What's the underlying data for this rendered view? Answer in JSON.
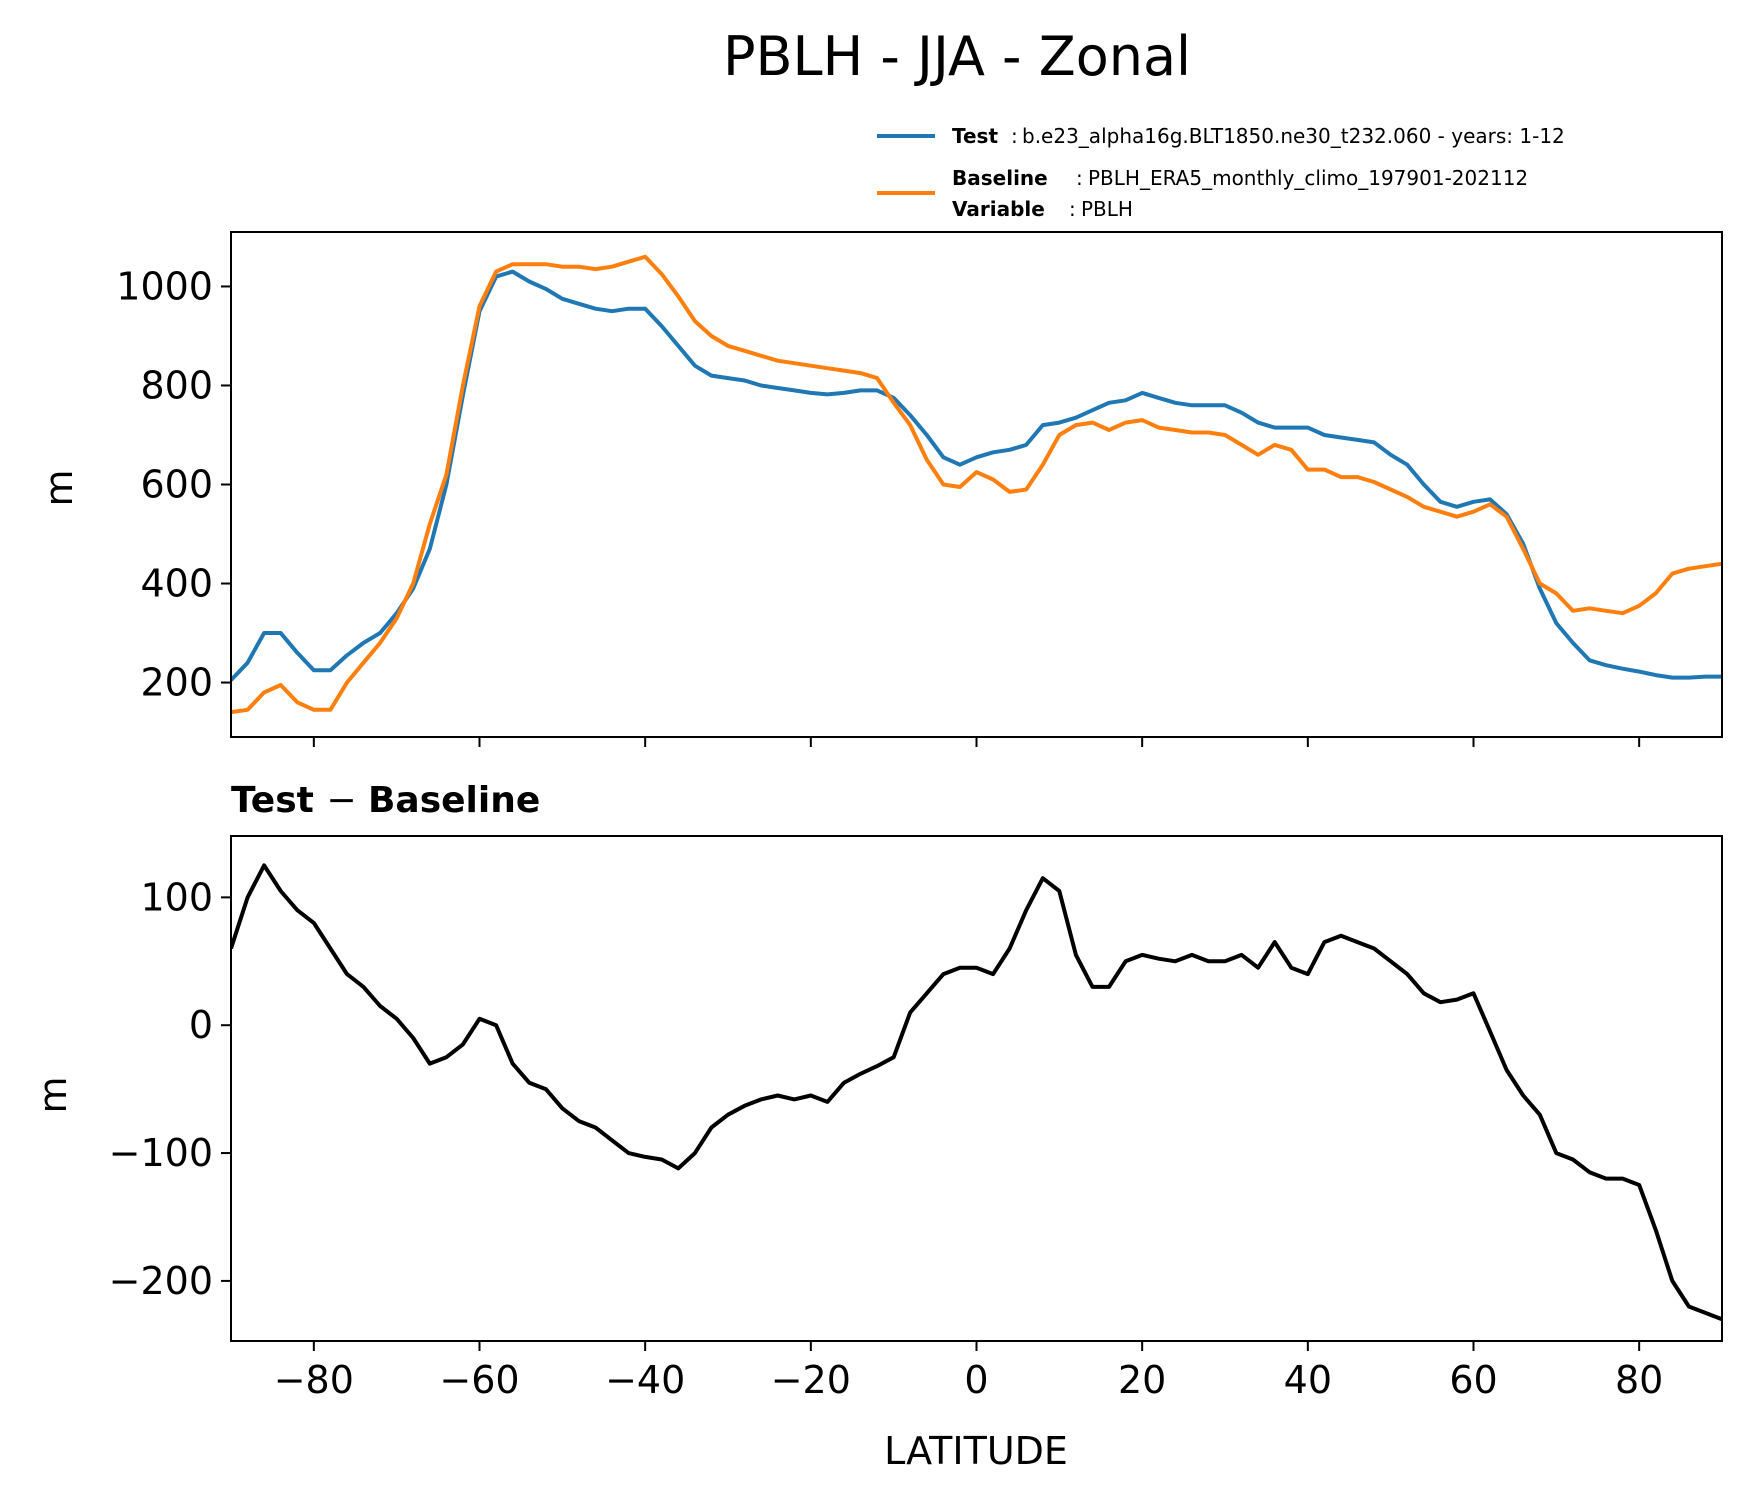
{
  "chart_data": [
    {
      "type": "line",
      "title": "PBLH - JJA - Zonal",
      "ylabel": "m",
      "xlim": [
        -90,
        90
      ],
      "ylim": [
        90,
        1110
      ],
      "xticks": [
        -80,
        -60,
        -40,
        -20,
        0,
        20,
        40,
        60,
        80
      ],
      "yticks": [
        200,
        400,
        600,
        800,
        1000
      ],
      "ytick_labels": [
        "200",
        "400",
        "600",
        "800",
        "1000"
      ],
      "legend": {
        "test_label": "Test",
        "test_text": "b.e23_alpha16g.BLT1850.ne30_t232.060 - years: 1-12",
        "baseline_label": "Baseline",
        "baseline_text": "PBLH_ERA5_monthly_climo_197901-202112",
        "variable_label": "Variable",
        "variable_text": "PBLH",
        "placement": "top-right, above plot"
      },
      "series": [
        {
          "name": "Test",
          "color": "#1f77b4",
          "x": [
            -90,
            -88,
            -86,
            -84,
            -82,
            -80,
            -78,
            -76,
            -74,
            -72,
            -70,
            -68,
            -66,
            -64,
            -62,
            -60,
            -58,
            -56,
            -54,
            -52,
            -50,
            -48,
            -46,
            -44,
            -42,
            -40,
            -38,
            -36,
            -34,
            -32,
            -30,
            -28,
            -26,
            -24,
            -22,
            -20,
            -18,
            -16,
            -14,
            -12,
            -10,
            -8,
            -6,
            -4,
            -2,
            0,
            2,
            4,
            6,
            8,
            10,
            12,
            14,
            16,
            18,
            20,
            22,
            24,
            26,
            28,
            30,
            32,
            34,
            36,
            38,
            40,
            42,
            44,
            46,
            48,
            50,
            52,
            54,
            56,
            58,
            60,
            62,
            64,
            66,
            68,
            70,
            72,
            74,
            76,
            78,
            80,
            82,
            84,
            86,
            88,
            90
          ],
          "values": [
            205,
            240,
            300,
            300,
            260,
            225,
            225,
            255,
            280,
            300,
            340,
            390,
            470,
            600,
            780,
            950,
            1020,
            1030,
            1010,
            995,
            975,
            965,
            955,
            950,
            955,
            955,
            920,
            880,
            840,
            820,
            815,
            810,
            800,
            795,
            790,
            785,
            782,
            785,
            790,
            790,
            775,
            740,
            700,
            655,
            640,
            655,
            665,
            670,
            680,
            720,
            725,
            735,
            750,
            765,
            770,
            785,
            775,
            765,
            760,
            760,
            760,
            745,
            725,
            715,
            715,
            715,
            700,
            695,
            690,
            685,
            660,
            640,
            600,
            565,
            555,
            565,
            570,
            540,
            480,
            390,
            320,
            280,
            245,
            235,
            228,
            222,
            215,
            210,
            210,
            212,
            212
          ]
        },
        {
          "name": "Baseline",
          "color": "#ff7f0e",
          "x": [
            -90,
            -88,
            -86,
            -84,
            -82,
            -80,
            -78,
            -76,
            -74,
            -72,
            -70,
            -68,
            -66,
            -64,
            -62,
            -60,
            -58,
            -56,
            -54,
            -52,
            -50,
            -48,
            -46,
            -44,
            -42,
            -40,
            -38,
            -36,
            -34,
            -32,
            -30,
            -28,
            -26,
            -24,
            -22,
            -20,
            -18,
            -16,
            -14,
            -12,
            -10,
            -8,
            -6,
            -4,
            -2,
            0,
            2,
            4,
            6,
            8,
            10,
            12,
            14,
            16,
            18,
            20,
            22,
            24,
            26,
            28,
            30,
            32,
            34,
            36,
            38,
            40,
            42,
            44,
            46,
            48,
            50,
            52,
            54,
            56,
            58,
            60,
            62,
            64,
            66,
            68,
            70,
            72,
            74,
            76,
            78,
            80,
            82,
            84,
            86,
            88,
            90
          ],
          "values": [
            140,
            145,
            180,
            195,
            160,
            145,
            145,
            200,
            240,
            280,
            330,
            400,
            520,
            620,
            800,
            960,
            1030,
            1045,
            1045,
            1045,
            1040,
            1040,
            1035,
            1040,
            1050,
            1060,
            1025,
            980,
            930,
            900,
            880,
            870,
            860,
            850,
            845,
            840,
            835,
            830,
            825,
            815,
            765,
            720,
            650,
            600,
            595,
            625,
            610,
            585,
            590,
            640,
            700,
            720,
            725,
            710,
            725,
            730,
            715,
            710,
            705,
            705,
            700,
            680,
            660,
            680,
            670,
            630,
            630,
            615,
            615,
            605,
            590,
            575,
            555,
            545,
            535,
            545,
            560,
            535,
            470,
            400,
            380,
            345,
            350,
            345,
            340,
            355,
            380,
            420,
            430,
            435,
            440
          ]
        }
      ]
    },
    {
      "type": "line",
      "title": "Test - Baseline",
      "xlabel": "LATITUDE",
      "ylabel": "m",
      "xlim": [
        -90,
        90
      ],
      "ylim": [
        -247,
        148
      ],
      "xticks": [
        -80,
        -60,
        -40,
        -20,
        0,
        20,
        40,
        60,
        80
      ],
      "xtick_labels": [
        "−80",
        "−60",
        "−40",
        "−20",
        "0",
        "20",
        "40",
        "60",
        "80"
      ],
      "yticks": [
        -200,
        -100,
        0,
        100
      ],
      "ytick_labels": [
        "−200",
        "−100",
        "0",
        "100"
      ],
      "series": [
        {
          "color": "#000000",
          "x": [
            -90,
            -88,
            -86,
            -84,
            -82,
            -80,
            -78,
            -76,
            -74,
            -72,
            -70,
            -68,
            -66,
            -64,
            -62,
            -60,
            -58,
            -56,
            -54,
            -52,
            -50,
            -48,
            -46,
            -44,
            -42,
            -40,
            -38,
            -36,
            -34,
            -32,
            -30,
            -28,
            -26,
            -24,
            -22,
            -20,
            -18,
            -16,
            -14,
            -12,
            -10,
            -8,
            -6,
            -4,
            -2,
            0,
            2,
            4,
            6,
            8,
            10,
            12,
            14,
            16,
            18,
            20,
            22,
            24,
            26,
            28,
            30,
            32,
            34,
            36,
            38,
            40,
            42,
            44,
            46,
            48,
            50,
            52,
            54,
            56,
            58,
            60,
            62,
            64,
            66,
            68,
            70,
            72,
            74,
            76,
            78,
            80,
            82,
            84,
            86,
            88,
            90
          ],
          "values": [
            60,
            100,
            125,
            105,
            90,
            80,
            60,
            40,
            30,
            15,
            5,
            -10,
            -30,
            -25,
            -15,
            5,
            0,
            -30,
            -45,
            -50,
            -65,
            -75,
            -80,
            -90,
            -100,
            -103,
            -105,
            -112,
            -100,
            -80,
            -70,
            -63,
            -58,
            -55,
            -58,
            -55,
            -60,
            -45,
            -38,
            -32,
            -25,
            10,
            25,
            40,
            45,
            45,
            40,
            60,
            90,
            115,
            105,
            55,
            30,
            30,
            50,
            55,
            52,
            50,
            55,
            50,
            50,
            55,
            45,
            65,
            45,
            40,
            65,
            70,
            65,
            60,
            50,
            40,
            25,
            18,
            20,
            25,
            -5,
            -35,
            -55,
            -70,
            -100,
            -105,
            -115,
            -120,
            -120,
            -125,
            -160,
            -200,
            -220,
            -225,
            -230
          ]
        }
      ]
    }
  ]
}
